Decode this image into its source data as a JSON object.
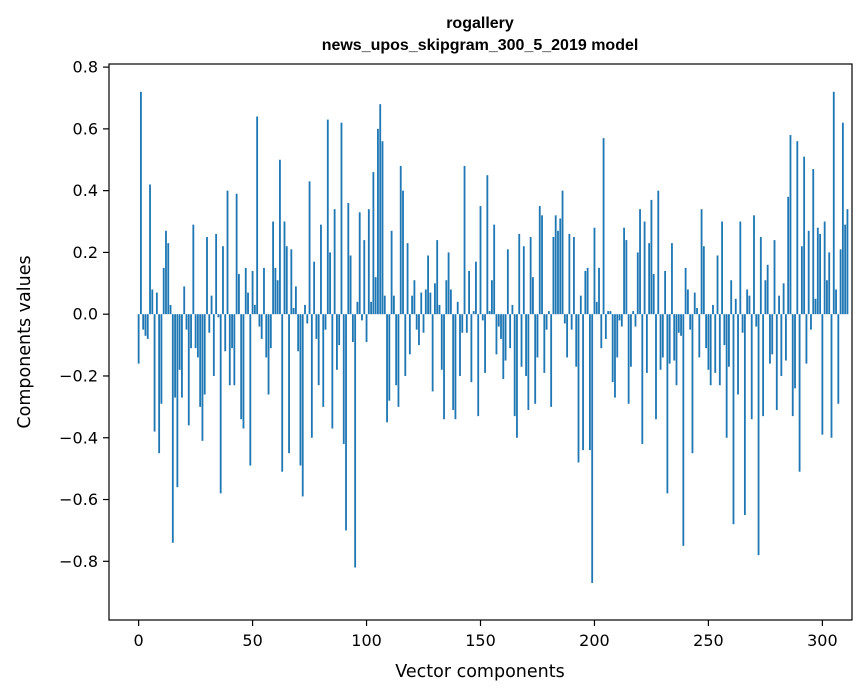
{
  "chart_data": {
    "type": "bar",
    "title": "rogallery",
    "subtitle": "news_upos_skipgram_300_5_2019 model",
    "xlabel": "Vector components",
    "ylabel": "Components values",
    "xlim": [
      -13,
      313
    ],
    "ylim": [
      -0.99,
      0.81
    ],
    "xticks": [
      0,
      50,
      100,
      150,
      200,
      250,
      300
    ],
    "yticks": [
      -0.8,
      -0.6,
      -0.4,
      -0.2,
      0.0,
      0.2,
      0.4,
      0.6,
      0.8
    ],
    "ytick_labels": [
      "−0.8",
      "−0.6",
      "−0.4",
      "−0.2",
      "0.0",
      "0.2",
      "0.4",
      "0.6",
      "0.8"
    ],
    "grid": false,
    "bar_color": "#1f77b4",
    "values": [
      -0.16,
      0.72,
      -0.05,
      -0.07,
      -0.08,
      0.42,
      0.08,
      -0.38,
      0.07,
      -0.45,
      -0.29,
      0.15,
      0.27,
      0.23,
      0.03,
      -0.74,
      -0.27,
      -0.56,
      -0.18,
      -0.27,
      0.09,
      -0.05,
      -0.36,
      -0.11,
      0.29,
      -0.11,
      -0.14,
      -0.3,
      -0.41,
      -0.26,
      0.25,
      -0.06,
      0.06,
      -0.2,
      0.26,
      -0.01,
      -0.58,
      0.22,
      -0.12,
      0.4,
      -0.23,
      -0.11,
      -0.23,
      0.39,
      0.13,
      -0.34,
      -0.37,
      0.15,
      0.07,
      -0.49,
      0.14,
      0.03,
      0.64,
      -0.04,
      -0.08,
      0.15,
      -0.14,
      -0.26,
      -0.11,
      0.3,
      0.15,
      0.11,
      0.5,
      -0.51,
      0.3,
      0.22,
      -0.45,
      0.21,
      0.02,
      0.09,
      -0.12,
      -0.49,
      -0.59,
      0.03,
      -0.03,
      0.43,
      -0.4,
      0.17,
      -0.08,
      -0.23,
      0.29,
      -0.3,
      -0.05,
      0.63,
      0.2,
      -0.37,
      0.34,
      -0.18,
      -0.1,
      0.62,
      -0.42,
      -0.7,
      0.36,
      0.19,
      -0.09,
      -0.82,
      0.04,
      0.33,
      -0.02,
      0.24,
      -0.09,
      0.34,
      0.04,
      0.46,
      0.12,
      0.6,
      0.68,
      0.56,
      0.06,
      -0.35,
      -0.28,
      0.27,
      0.06,
      -0.23,
      -0.3,
      0.48,
      0.4,
      -0.2,
      0.23,
      -0.13,
      0.06,
      0.11,
      -0.05,
      -0.1,
      0.07,
      -0.06,
      0.08,
      0.19,
      0.07,
      -0.25,
      0.1,
      0.24,
      0.03,
      -0.18,
      -0.34,
      0.11,
      0.2,
      0.08,
      -0.31,
      -0.34,
      0.04,
      -0.2,
      -0.06,
      0.48,
      -0.06,
      0.14,
      -0.22,
      0.01,
      0.17,
      -0.33,
      0.35,
      -0.02,
      -0.19,
      0.45,
      0.01,
      0.11,
      0.29,
      -0.13,
      -0.04,
      -0.08,
      -0.21,
      -0.15,
      0.21,
      -0.11,
      0.03,
      -0.33,
      -0.4,
      0.26,
      -0.17,
      0.22,
      -0.2,
      -0.31,
      0.25,
      0.12,
      -0.29,
      -0.14,
      0.35,
      0.32,
      -0.19,
      -0.05,
      0.01,
      -0.3,
      0.25,
      0.32,
      0.27,
      0.31,
      0.4,
      -0.03,
      -0.14,
      0.26,
      -0.05,
      0.25,
      -0.17,
      -0.48,
      0.06,
      -0.44,
      0.14,
      0.15,
      -0.44,
      -0.87,
      0.28,
      0.04,
      0.15,
      -0.11,
      0.57,
      -0.08,
      0.01,
      0.01,
      -0.22,
      -0.27,
      -0.14,
      -0.02,
      -0.04,
      0.28,
      0.24,
      -0.29,
      -0.17,
      0.01,
      -0.04,
      0.2,
      0.34,
      -0.42,
      0.3,
      -0.19,
      0.23,
      0.37,
      0.13,
      -0.34,
      0.4,
      -0.18,
      -0.14,
      0.14,
      -0.58,
      -0.16,
      0.23,
      -0.15,
      -0.23,
      -0.06,
      -0.07,
      -0.75,
      0.15,
      0.08,
      -0.05,
      -0.45,
      0.07,
      0.02,
      -0.14,
      0.34,
      0.22,
      -0.11,
      -0.18,
      -0.23,
      0.03,
      -0.19,
      0.19,
      -0.23,
      0.3,
      -0.1,
      -0.4,
      -0.17,
      0.11,
      -0.68,
      0.05,
      -0.26,
      0.3,
      -0.06,
      -0.65,
      0.08,
      0.06,
      -0.34,
      0.32,
      -0.04,
      -0.78,
      0.25,
      -0.33,
      0.11,
      0.16,
      -0.16,
      -0.13,
      0.24,
      -0.31,
      0.06,
      -0.2,
      0.1,
      -0.15,
      0.38,
      0.58,
      -0.33,
      -0.24,
      0.56,
      -0.51,
      0.22,
      0.51,
      -0.16,
      0.27,
      -0.05,
      0.47,
      0.05,
      0.28,
      0.26,
      -0.39,
      0.3,
      0.11,
      0.2,
      -0.4,
      0.72,
      0.08,
      -0.29,
      0.21,
      0.62,
      0.29,
      0.34
    ]
  }
}
